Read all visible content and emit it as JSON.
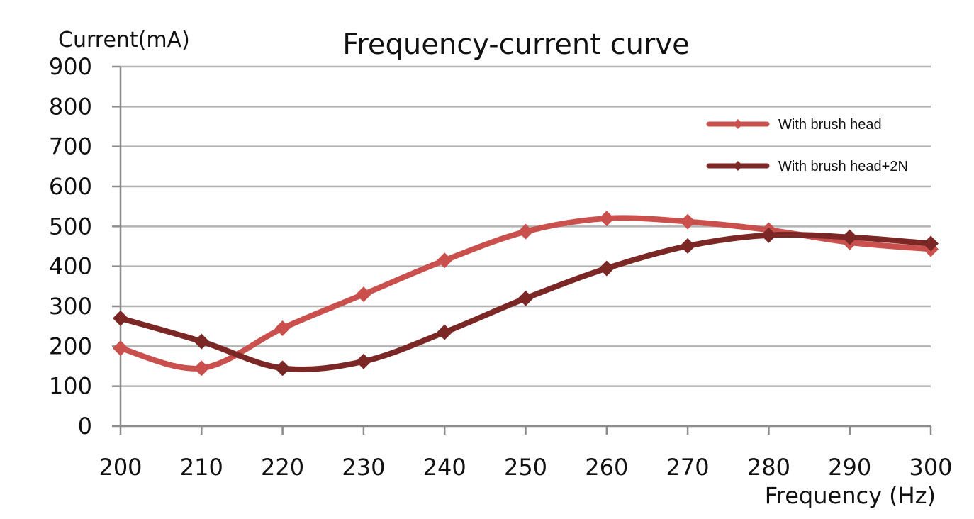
{
  "chart_data": {
    "type": "line",
    "title": "Frequency-current curve",
    "ylabel": "Current(mA)",
    "xlabel": "Frequency (Hz)",
    "x": [
      200,
      210,
      220,
      230,
      240,
      250,
      260,
      270,
      280,
      290,
      300
    ],
    "xlim": [
      200,
      300
    ],
    "ylim": [
      0,
      900
    ],
    "yticks": [
      0,
      100,
      200,
      300,
      400,
      500,
      600,
      700,
      800,
      900
    ],
    "grid": true,
    "legend_position": "top-right",
    "series": [
      {
        "name": "With brush head",
        "color": "#c9504c",
        "marker": "diamond",
        "values": [
          195,
          145,
          245,
          330,
          415,
          487,
          520,
          512,
          491,
          460,
          443
        ]
      },
      {
        "name": "With brush head+2N",
        "color": "#7b2726",
        "marker": "diamond",
        "values": [
          270,
          212,
          145,
          162,
          235,
          320,
          395,
          451,
          478,
          473,
          457
        ]
      }
    ]
  }
}
